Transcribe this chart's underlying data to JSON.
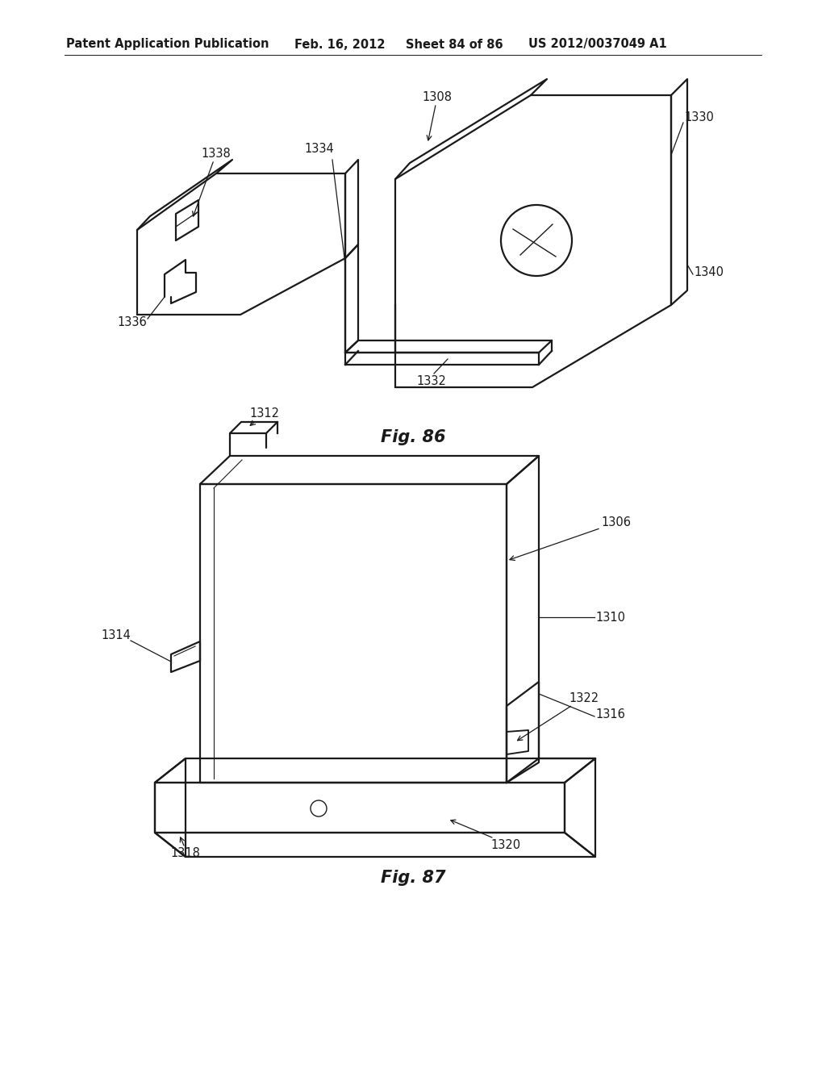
{
  "bg_color": "#ffffff",
  "header_left": "Patent Application Publication",
  "header_date": "Feb. 16, 2012",
  "header_sheet": "Sheet 84 of 86",
  "header_patent": "US 2012/0037049 A1",
  "fig86_caption": "Fig. 86",
  "fig87_caption": "Fig. 87",
  "line_color": "#1a1a1a",
  "text_color": "#1a1a1a",
  "header_fontsize": 10.5,
  "label_fontsize": 10.5,
  "caption_fontsize": 15
}
